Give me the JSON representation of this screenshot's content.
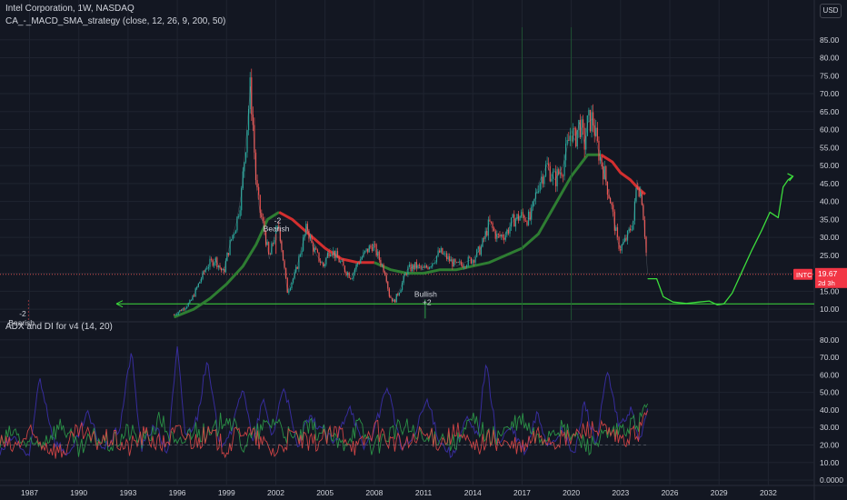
{
  "header": {
    "title": "Intel Corporation, 1W, NASDAQ",
    "indicator": "CA_-_MACD_SMA_strategy (close, 12, 26, 9, 200, 50)",
    "sub_indicator": "ADX and DI for v4 (14, 20)",
    "currency": "USD"
  },
  "price_tag": {
    "ticker": "INTC",
    "price": "19.67",
    "countdown": "2d 3h",
    "color": "#f23645"
  },
  "annotations": {
    "left_signal": "-2",
    "left_label": "Bearish",
    "mid_signal": "-2",
    "mid_label": "Bearish",
    "bull_label": "Bullish",
    "bull_signal": "+2"
  },
  "colors": {
    "background": "#131722",
    "grid": "#1f2430",
    "price_up": "#26a69a",
    "price_down": "#ef5350",
    "sma_bull": "#2e7d32",
    "sma_bear": "#d32f2f",
    "projection": "#3cdc3c",
    "adx": "#3b2fa8",
    "di_plus": "#2e9e4a",
    "di_minus": "#e04848"
  },
  "chart_data": [
    {
      "type": "line",
      "panel": "price",
      "ylim": [
        7,
        90
      ],
      "ytick_labels": [
        "10.00",
        "15.00",
        "20.00",
        "25.00",
        "30.00",
        "35.00",
        "40.00",
        "45.00",
        "50.00",
        "55.00",
        "60.00",
        "65.00",
        "70.00",
        "75.00",
        "80.00",
        "85.00"
      ],
      "yticks": [
        10,
        15,
        20,
        25,
        30,
        35,
        40,
        45,
        50,
        55,
        60,
        65,
        70,
        75,
        80,
        85
      ],
      "xlim": [
        1985.2,
        2034.8
      ],
      "xtick_labels": [
        "1987",
        "1990",
        "1993",
        "1996",
        "1999",
        "2002",
        "2005",
        "2008",
        "2011",
        "2014",
        "2017",
        "2020",
        "2023",
        "2026",
        "2029",
        "2032"
      ],
      "xticks": [
        1987,
        1990,
        1993,
        1996,
        1999,
        2002,
        2005,
        2008,
        2011,
        2014,
        2017,
        2020,
        2023,
        2026,
        2029,
        2032
      ],
      "price_series": {
        "x": [
          1995.8,
          1996.3,
          1996.8,
          1997.3,
          1997.8,
          1998.3,
          1998.8,
          1999.2,
          1999.6,
          1999.9,
          2000.2,
          2000.45,
          2000.6,
          2000.8,
          2001.0,
          2001.3,
          2001.6,
          2001.9,
          2002.2,
          2002.5,
          2002.7,
          2002.9,
          2003.2,
          2003.5,
          2003.9,
          2004.2,
          2004.5,
          2004.9,
          2005.3,
          2005.8,
          2006.2,
          2006.6,
          2007.0,
          2007.5,
          2007.9,
          2008.3,
          2008.7,
          2008.9,
          2009.2,
          2009.6,
          2010.0,
          2010.5,
          2011.0,
          2011.5,
          2012.0,
          2012.5,
          2013.0,
          2013.5,
          2014.0,
          2014.5,
          2015.0,
          2015.5,
          2016.0,
          2016.5,
          2017.0,
          2017.5,
          2018.0,
          2018.5,
          2019.0,
          2019.5,
          2020.0,
          2020.2,
          2020.5,
          2020.8,
          2021.0,
          2021.3,
          2021.6,
          2022.0,
          2022.4,
          2022.8,
          2023.0,
          2023.4,
          2023.8,
          2024.0,
          2024.3,
          2024.5,
          2024.65
        ],
        "values": [
          8.5,
          10,
          12,
          17,
          22,
          24,
          20,
          28,
          34,
          42,
          58,
          72,
          62,
          45,
          38,
          32,
          24,
          30,
          33,
          22,
          15,
          17,
          20,
          26,
          33,
          28,
          25,
          22,
          27,
          24,
          21,
          19,
          23,
          26,
          28,
          24,
          20,
          14,
          12,
          16,
          21,
          22,
          21,
          23,
          26,
          24,
          22,
          23,
          24,
          27,
          34,
          30,
          31,
          35,
          36,
          35,
          45,
          50,
          46,
          50,
          60,
          57,
          62,
          56,
          62,
          63,
          55,
          48,
          40,
          29,
          27,
          30,
          35,
          46,
          41,
          30,
          19.7
        ]
      },
      "sma200_series": {
        "x": [
          1995.8,
          1997.0,
          1998.0,
          1999.0,
          2000.0,
          2000.8,
          2001.5,
          2002.2,
          2003.0,
          2004.0,
          2005.0,
          2006.0,
          2007.0,
          2008.0,
          2009.0,
          2010.0,
          2011.0,
          2012.0,
          2013.0,
          2014.0,
          2015.0,
          2016.0,
          2017.0,
          2018.0,
          2019.0,
          2020.0,
          2021.0,
          2021.8,
          2022.5,
          2023.0,
          2023.6,
          2024.0,
          2024.5
        ],
        "values": [
          7.8,
          10,
          13,
          17,
          22,
          28,
          35,
          37,
          35,
          31,
          27,
          24,
          23,
          23,
          21,
          20,
          20,
          21,
          21,
          22,
          23,
          25,
          27,
          31,
          39,
          47,
          53,
          53,
          51,
          48,
          46,
          44,
          42
        ]
      },
      "projection_series": {
        "x": [
          2024.65,
          2025.2,
          2025.6,
          2026.2,
          2027.0,
          2027.8,
          2028.4,
          2028.9,
          2029.3,
          2029.8,
          2030.4,
          2031.0,
          2031.6,
          2032.1,
          2032.6,
          2032.9,
          2033.2,
          2033.5
        ],
        "values": [
          18.5,
          18.5,
          13.5,
          12.0,
          11.6,
          12.0,
          12.3,
          11.2,
          11.5,
          14.5,
          20.5,
          26.5,
          32,
          37,
          35.5,
          44,
          46,
          47
        ]
      },
      "horizontal_level": 11.5,
      "signals": [
        {
          "x": 1985.6,
          "value": 10.0,
          "signal": "-2",
          "label": "Bearish"
        },
        {
          "x": 2001.9,
          "value": 33.0,
          "signal": "-2",
          "label": "Bearish"
        },
        {
          "x": 2011.1,
          "value": 14.0,
          "signal": "+2",
          "label": "Bullish"
        }
      ]
    },
    {
      "type": "line",
      "panel": "adx",
      "ylim": [
        -1,
        83
      ],
      "ytick_labels": [
        "0.0000",
        "10.00",
        "20.00",
        "30.00",
        "40.00",
        "50.00",
        "60.00",
        "70.00",
        "80.00"
      ],
      "yticks": [
        0,
        10,
        20,
        30,
        40,
        50,
        60,
        70,
        80
      ],
      "series": [
        {
          "name": "ADX",
          "color": "#3b2fa8",
          "x": [
            1985.2,
            1986.0,
            1987.0,
            1987.6,
            1988.5,
            1989.5,
            1990.5,
            1991.5,
            1992.5,
            1993.2,
            1993.8,
            1994.6,
            1995.4,
            1996.0,
            1996.5,
            1997.2,
            1997.8,
            1998.6,
            1999.4,
            2000.0,
            2000.6,
            2001.2,
            2001.8,
            2002.5,
            2003.3,
            2004.0,
            2004.8,
            2005.6,
            2006.5,
            2007.3,
            2008.0,
            2008.8,
            2009.6,
            2010.4,
            2011.2,
            2012.0,
            2012.8,
            2013.6,
            2014.3,
            2014.8,
            2015.5,
            2016.3,
            2017.2,
            2017.9,
            2018.6,
            2019.4,
            2020.2,
            2020.8,
            2021.5,
            2022.2,
            2022.9,
            2023.6,
            2024.2,
            2024.65
          ],
          "values": [
            15,
            25,
            12,
            60,
            22,
            14,
            38,
            17,
            30,
            74,
            18,
            32,
            15,
            75,
            25,
            35,
            68,
            20,
            30,
            55,
            20,
            46,
            25,
            55,
            18,
            35,
            30,
            20,
            44,
            18,
            28,
            55,
            18,
            24,
            46,
            22,
            14,
            35,
            25,
            68,
            20,
            30,
            15,
            38,
            20,
            28,
            14,
            45,
            20,
            62,
            30,
            40,
            22,
            40
          ]
        },
        {
          "name": "DI+",
          "color": "#2e9e4a",
          "x": [
            1985.2,
            1986.0,
            1987.0,
            1988.0,
            1989.0,
            1990.0,
            1991.0,
            1992.0,
            1993.0,
            1994.0,
            1995.0,
            1996.0,
            1997.0,
            1998.0,
            1999.0,
            2000.0,
            2001.0,
            2002.0,
            2003.0,
            2004.0,
            2005.0,
            2006.0,
            2007.0,
            2008.0,
            2009.0,
            2010.0,
            2011.0,
            2012.0,
            2013.0,
            2014.0,
            2015.0,
            2016.0,
            2017.0,
            2018.0,
            2019.0,
            2020.0,
            2021.0,
            2022.0,
            2023.0,
            2024.0,
            2024.65
          ],
          "values": [
            20,
            28,
            18,
            24,
            32,
            16,
            25,
            20,
            28,
            22,
            35,
            18,
            30,
            24,
            38,
            20,
            28,
            35,
            22,
            30,
            26,
            20,
            32,
            18,
            28,
            30,
            22,
            26,
            20,
            35,
            24,
            28,
            34,
            22,
            30,
            26,
            20,
            24,
            28,
            32,
            42
          ]
        },
        {
          "name": "DI-",
          "color": "#e04848",
          "x": [
            1985.2,
            1986.0,
            1987.0,
            1988.0,
            1989.0,
            1990.0,
            1991.0,
            1992.0,
            1993.0,
            1994.0,
            1995.0,
            1996.0,
            1997.0,
            1998.0,
            1999.0,
            2000.0,
            2001.0,
            2002.0,
            2003.0,
            2004.0,
            2005.0,
            2006.0,
            2007.0,
            2008.0,
            2009.0,
            2010.0,
            2011.0,
            2012.0,
            2013.0,
            2014.0,
            2015.0,
            2016.0,
            2017.0,
            2018.0,
            2019.0,
            2020.0,
            2021.0,
            2022.0,
            2023.0,
            2024.0,
            2024.65
          ],
          "values": [
            22,
            18,
            26,
            20,
            16,
            28,
            22,
            24,
            18,
            26,
            20,
            28,
            22,
            26,
            18,
            30,
            22,
            16,
            26,
            20,
            24,
            28,
            18,
            30,
            22,
            20,
            26,
            22,
            28,
            18,
            24,
            20,
            18,
            26,
            22,
            24,
            30,
            28,
            22,
            26,
            38
          ]
        }
      ]
    }
  ]
}
